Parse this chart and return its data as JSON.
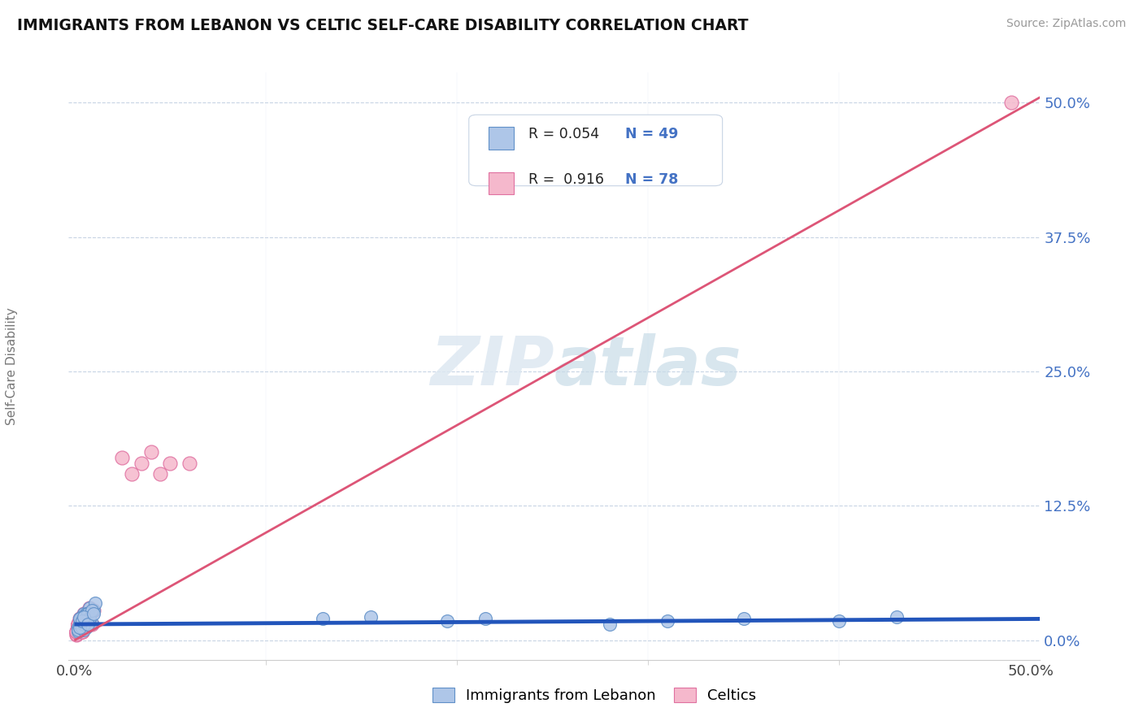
{
  "title": "IMMIGRANTS FROM LEBANON VS CELTIC SELF-CARE DISABILITY CORRELATION CHART",
  "source": "Source: ZipAtlas.com",
  "ylabel": "Self-Care Disability",
  "ytick_labels": [
    "0.0%",
    "12.5%",
    "25.0%",
    "37.5%",
    "50.0%"
  ],
  "ytick_values": [
    0.0,
    0.125,
    0.25,
    0.375,
    0.5
  ],
  "xlim": [
    -0.003,
    0.505
  ],
  "ylim": [
    -0.018,
    0.528
  ],
  "legend_r1": "R = 0.054",
  "legend_n1": "N = 49",
  "legend_r2": "R =  0.916",
  "legend_n2": "N = 78",
  "series1_color": "#aec6e8",
  "series2_color": "#f5b8cc",
  "series1_edge": "#6090c8",
  "series2_edge": "#e070a0",
  "trendline1_color": "#2255bb",
  "trendline2_color": "#dd5577",
  "watermark_color": "#dde8f2",
  "background_color": "#ffffff",
  "grid_color": "#c8d4e4",
  "legend1_label": "Immigrants from Lebanon",
  "legend2_label": "Celtics",
  "lb_x": [
    0.002,
    0.003,
    0.004,
    0.005,
    0.006,
    0.007,
    0.008,
    0.009,
    0.01,
    0.011,
    0.002,
    0.003,
    0.004,
    0.005,
    0.006,
    0.007,
    0.003,
    0.004,
    0.005,
    0.006,
    0.002,
    0.003,
    0.005,
    0.006,
    0.007,
    0.008,
    0.004,
    0.005,
    0.003,
    0.004,
    0.006,
    0.007,
    0.005,
    0.008,
    0.009,
    0.003,
    0.004,
    0.005,
    0.007,
    0.01,
    0.13,
    0.155,
    0.195,
    0.215,
    0.28,
    0.31,
    0.35,
    0.4,
    0.43
  ],
  "lb_y": [
    0.012,
    0.02,
    0.015,
    0.025,
    0.018,
    0.022,
    0.03,
    0.016,
    0.028,
    0.035,
    0.008,
    0.015,
    0.02,
    0.012,
    0.025,
    0.018,
    0.01,
    0.022,
    0.015,
    0.02,
    0.01,
    0.015,
    0.018,
    0.012,
    0.025,
    0.02,
    0.015,
    0.01,
    0.02,
    0.012,
    0.018,
    0.025,
    0.015,
    0.02,
    0.028,
    0.012,
    0.018,
    0.022,
    0.015,
    0.025,
    0.02,
    0.022,
    0.018,
    0.02,
    0.015,
    0.018,
    0.02,
    0.018,
    0.022
  ],
  "ce_x": [
    0.001,
    0.002,
    0.003,
    0.004,
    0.005,
    0.006,
    0.007,
    0.008,
    0.009,
    0.01,
    0.001,
    0.002,
    0.003,
    0.004,
    0.005,
    0.006,
    0.002,
    0.003,
    0.004,
    0.005,
    0.001,
    0.002,
    0.003,
    0.004,
    0.005,
    0.006,
    0.003,
    0.004,
    0.002,
    0.003,
    0.004,
    0.005,
    0.003,
    0.006,
    0.007,
    0.002,
    0.003,
    0.004,
    0.005,
    0.008,
    0.001,
    0.002,
    0.003,
    0.004,
    0.005,
    0.006,
    0.003,
    0.004,
    0.002,
    0.003,
    0.004,
    0.005,
    0.003,
    0.006,
    0.007,
    0.002,
    0.003,
    0.004,
    0.005,
    0.008,
    0.001,
    0.002,
    0.003,
    0.004,
    0.005,
    0.006,
    0.003,
    0.004,
    0.002,
    0.003,
    0.025,
    0.03,
    0.035,
    0.04,
    0.045,
    0.05,
    0.06,
    0.49
  ],
  "ce_y": [
    0.008,
    0.015,
    0.02,
    0.012,
    0.025,
    0.018,
    0.022,
    0.03,
    0.015,
    0.028,
    0.005,
    0.012,
    0.018,
    0.008,
    0.02,
    0.015,
    0.008,
    0.015,
    0.01,
    0.018,
    0.006,
    0.012,
    0.015,
    0.01,
    0.02,
    0.015,
    0.012,
    0.008,
    0.015,
    0.01,
    0.015,
    0.02,
    0.012,
    0.018,
    0.022,
    0.01,
    0.015,
    0.018,
    0.012,
    0.025,
    0.008,
    0.012,
    0.015,
    0.01,
    0.02,
    0.015,
    0.012,
    0.008,
    0.015,
    0.01,
    0.015,
    0.02,
    0.012,
    0.018,
    0.022,
    0.01,
    0.015,
    0.018,
    0.012,
    0.025,
    0.008,
    0.012,
    0.015,
    0.01,
    0.02,
    0.015,
    0.012,
    0.008,
    0.015,
    0.01,
    0.17,
    0.155,
    0.165,
    0.175,
    0.155,
    0.165,
    0.165,
    0.5
  ],
  "trendline1_x": [
    0.0,
    0.505
  ],
  "trendline1_y": [
    0.015,
    0.02
  ],
  "trendline2_x": [
    0.0,
    0.505
  ],
  "trendline2_y": [
    0.0,
    0.505
  ]
}
